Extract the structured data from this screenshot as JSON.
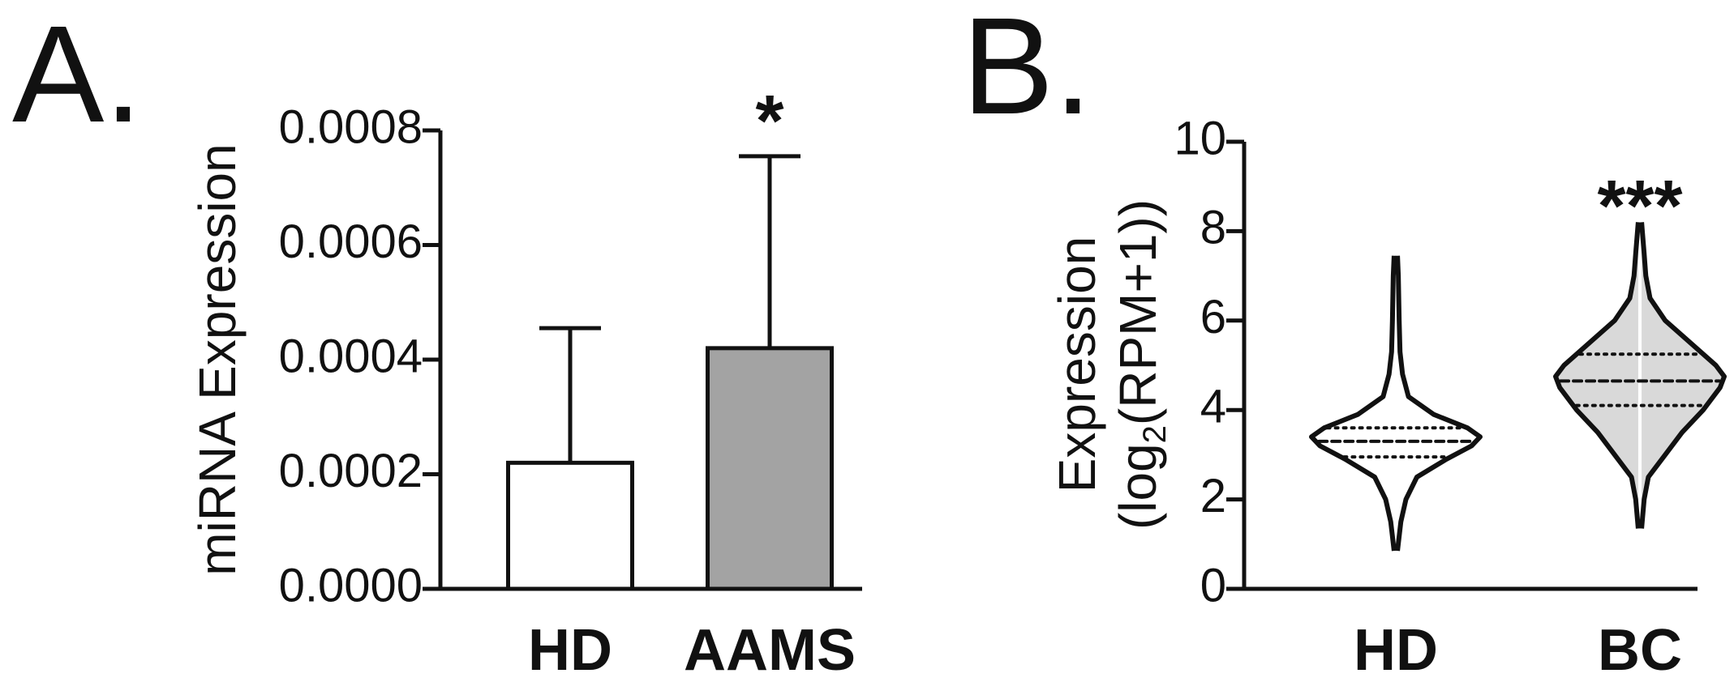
{
  "chart_data": [
    {
      "type": "bar",
      "panel_label": "A.",
      "y_label": "miRNA Expression",
      "categories": [
        "HD",
        "AAMS"
      ],
      "values": [
        0.00022,
        0.00042
      ],
      "errors": [
        0.000235,
        0.000335
      ],
      "colors": [
        "#ffffff",
        "#a3a3a3"
      ],
      "annotation": "*",
      "annotation_category": 1,
      "ylim": [
        0,
        0.0008
      ],
      "yticks": [
        {
          "value": 0,
          "label": "0.0000"
        },
        {
          "value": 0.0002,
          "label": "0.0002"
        },
        {
          "value": 0.0004,
          "label": "0.0004"
        },
        {
          "value": 0.0006,
          "label": "0.0006"
        },
        {
          "value": 0.0008,
          "label": "0.0008"
        }
      ]
    },
    {
      "type": "violin",
      "panel_label": "B.",
      "y_label": "Expression",
      "y_label_2": {
        "pre": "(log",
        "sub": "2",
        "post": "(RPM+1))"
      },
      "categories": [
        "HD",
        "BC"
      ],
      "colors": [
        "#ffffff",
        "#d9d9d9"
      ],
      "annotation": "***",
      "annotation_category": 1,
      "ylim": [
        0,
        10
      ],
      "yticks": [
        0,
        2,
        4,
        6,
        8,
        10
      ],
      "groups": [
        {
          "density_y": [
            0.85,
            1.5,
            2,
            2.5,
            2.9,
            3.2,
            3.4,
            3.6,
            3.9,
            4.3,
            4.8,
            5.3,
            6,
            7,
            7.45
          ],
          "density": [
            0.02,
            0.06,
            0.12,
            0.25,
            0.6,
            0.9,
            1,
            0.85,
            0.45,
            0.15,
            0.08,
            0.05,
            0.04,
            0.03,
            0.02
          ],
          "q1": 2.95,
          "median": 3.3,
          "q3": 3.6
        },
        {
          "density_y": [
            1.35,
            2,
            2.5,
            3,
            3.5,
            4,
            4.5,
            4.75,
            5,
            5.5,
            6,
            6.5,
            7,
            7.5,
            8.2
          ],
          "density": [
            0.02,
            0.05,
            0.1,
            0.3,
            0.5,
            0.75,
            0.95,
            1,
            0.9,
            0.6,
            0.3,
            0.12,
            0.07,
            0.05,
            0.02
          ],
          "q1": 4.1,
          "median": 4.65,
          "q3": 5.25
        }
      ]
    }
  ]
}
